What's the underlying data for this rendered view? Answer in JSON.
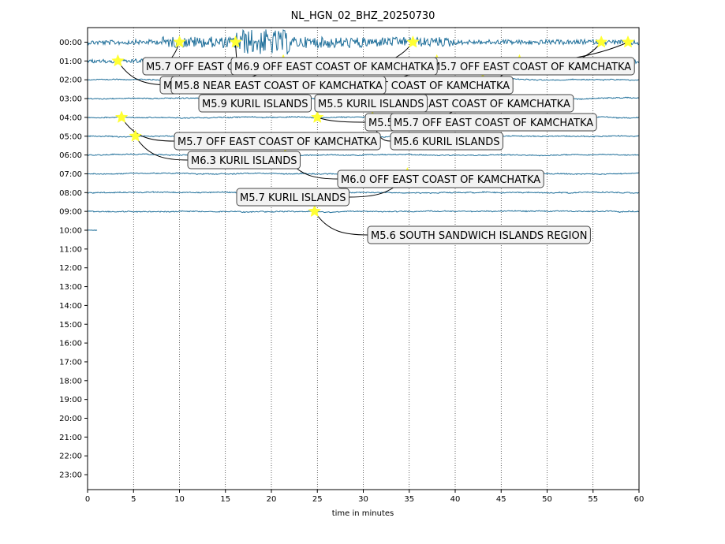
{
  "chart_data": {
    "type": "line",
    "title": "NL_HGN_02_BHZ_20250730",
    "xlabel": "time in minutes",
    "xlim": [
      0,
      60
    ],
    "xticks": [
      0,
      5,
      10,
      15,
      20,
      25,
      30,
      35,
      40,
      45,
      50,
      55,
      60
    ],
    "yticks": [
      "00:00",
      "01:00",
      "02:00",
      "03:00",
      "04:00",
      "05:00",
      "06:00",
      "07:00",
      "08:00",
      "09:00",
      "10:00",
      "11:00",
      "12:00",
      "13:00",
      "14:00",
      "15:00",
      "16:00",
      "17:00",
      "18:00",
      "19:00",
      "20:00",
      "21:00",
      "22:00",
      "23:00"
    ],
    "grid": "vertical dotted at each x tick",
    "trace_color": "#1f6f9a",
    "marker_color": "#ffff33",
    "traces": [
      {
        "hour": 0,
        "end_minute": 60,
        "amplitude": "very high"
      },
      {
        "hour": 1,
        "end_minute": 60,
        "amplitude": "high"
      },
      {
        "hour": 2,
        "end_minute": 60,
        "amplitude": "low"
      },
      {
        "hour": 3,
        "end_minute": 60,
        "amplitude": "low"
      },
      {
        "hour": 4,
        "end_minute": 60,
        "amplitude": "low"
      },
      {
        "hour": 5,
        "end_minute": 60,
        "amplitude": "low"
      },
      {
        "hour": 6,
        "end_minute": 60,
        "amplitude": "low"
      },
      {
        "hour": 7,
        "end_minute": 60,
        "amplitude": "low"
      },
      {
        "hour": 8,
        "end_minute": 60,
        "amplitude": "low"
      },
      {
        "hour": 9,
        "end_minute": 60,
        "amplitude": "low"
      },
      {
        "hour": 10,
        "end_minute": 1.1,
        "amplitude": "low"
      }
    ],
    "events": [
      {
        "hour": 0,
        "minute": 10.0,
        "label": "M5.7 OFF EAST COAST OF KAMCHATKA"
      },
      {
        "hour": 0,
        "minute": 16.1,
        "label": "M6.9 OFF EAST COAST OF KAMCHATKA"
      },
      {
        "hour": 0,
        "minute": 35.4,
        "label": "M5.8 OFF EAST COAST OF KAMCHATKA"
      },
      {
        "hour": 0,
        "minute": 55.9,
        "label": "M6.0 KURIL ISLANDS"
      },
      {
        "hour": 0,
        "minute": 58.8,
        "label": "M5.7 OFF EAST COAST OF KAMCHATKA"
      },
      {
        "hour": 1,
        "minute": 3.3,
        "label": "M5.8 NEAR EAST COAST OF KAMCHATKA"
      },
      {
        "hour": 1,
        "minute": 21.3,
        "label": "M5.6 OFF EAST COAST OF KAMCHATKA"
      },
      {
        "hour": 1,
        "minute": 38.0,
        "label": "M5.6 OFF EAST COAST OF KAMCHATKA"
      },
      {
        "hour": 1,
        "minute": 47.0,
        "label": "M5.8 NEAR EAST COAST OF KAMCHATKA"
      },
      {
        "hour": 2,
        "minute": 43.0,
        "label": "M5.7 OFF EAST COAST OF KAMCHATKA"
      },
      {
        "hour": 3,
        "minute": 13.5,
        "label": "M5.9 KURIL ISLANDS"
      },
      {
        "hour": 3,
        "minute": 26.0,
        "label": "M5.5 KURIL ISLANDS"
      },
      {
        "hour": 4,
        "minute": 3.7,
        "label": "M5.7 OFF EAST COAST OF KAMCHATKA"
      },
      {
        "hour": 4,
        "minute": 25.0,
        "label": "M5.5 OFF EAST COAST OF KAMCHATKA"
      },
      {
        "hour": 4,
        "minute": 31.0,
        "label": "M5.6 KURIL ISLANDS"
      },
      {
        "hour": 5,
        "minute": 5.2,
        "label": "M6.3 KURIL ISLANDS"
      },
      {
        "hour": 6,
        "minute": 21.5,
        "label": "M6.0 OFF EAST COAST OF KAMCHATKA"
      },
      {
        "hour": 7,
        "minute": 34.8,
        "label": "M5.7 KURIL ISLANDS"
      },
      {
        "hour": 9,
        "minute": 24.7,
        "label": "M5.6 SOUTH SANDWICH ISLANDS REGION"
      }
    ],
    "annotations": [
      {
        "label": "M5.8 OFF EAST COAST OF KAMCHATKA",
        "event_index": 2
      },
      {
        "label": "M5.6 OFF EAST COAST OF KAMCHATKA",
        "event_index": 6
      },
      {
        "label": "M5.6 OFF EAST COAST OF KAMCHATKA",
        "event_index": 7
      },
      {
        "label": "M5.8 NEAR EAST COAST OF KAMCHATKA",
        "event_index": 8
      },
      {
        "label": "M5.5 OFF EAST COAST OF KAMCHATKA",
        "event_index": 13
      },
      {
        "label": "M6.0 KURIL ISLANDS",
        "event_index": 3
      },
      {
        "label": "M5.7 OFF EAST COAST OF KAMCHATKA",
        "event_index": 4
      },
      {
        "label": "M5.7 OFF EAST COAST OF KAMCHATKA",
        "event_index": 9
      },
      {
        "label": "M5.6 KURIL ISLANDS",
        "event_index": 14
      },
      {
        "label": "M5.7 OFF EAST COAST OF KAMCHATKA",
        "event_index": 0
      },
      {
        "label": "M6.9 OFF EAST COAST OF KAMCHATKA",
        "event_index": 1
      },
      {
        "label": "M5.8 NEAR EAST COAST OF KAMCHATKA",
        "event_index": 5
      },
      {
        "label": "M5.9 KURIL ISLANDS",
        "event_index": 10
      },
      {
        "label": "M5.5 KURIL ISLANDS",
        "event_index": 11
      },
      {
        "label": "M5.7 OFF EAST COAST OF KAMCHATKA",
        "event_index": 12
      },
      {
        "label": "M6.3 KURIL ISLANDS",
        "event_index": 15
      },
      {
        "label": "M6.0 OFF EAST COAST OF KAMCHATKA",
        "event_index": 16
      },
      {
        "label": "M5.7 KURIL ISLANDS",
        "event_index": 17
      },
      {
        "label": "M5.6 SOUTH SANDWICH ISLANDS REGION",
        "event_index": 18
      }
    ]
  }
}
